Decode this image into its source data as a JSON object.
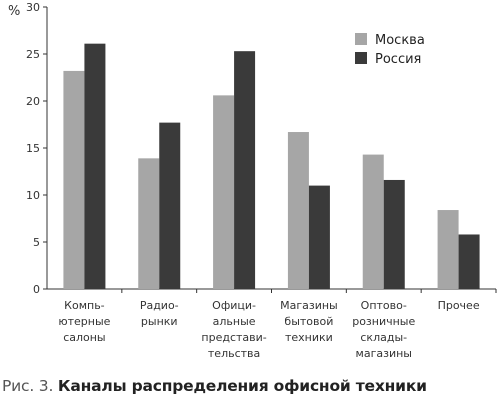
{
  "chart_data": {
    "type": "bar",
    "ylabel": "%",
    "ylim": [
      0,
      30
    ],
    "yticks": [
      0,
      5,
      10,
      15,
      20,
      25,
      30
    ],
    "categories": [
      [
        "Компь-",
        "ютерные",
        "салоны"
      ],
      [
        "Радио-",
        "рынки"
      ],
      [
        "Офици-",
        "альные",
        "представи-",
        "тельства"
      ],
      [
        "Магазины",
        "бытовой",
        "техники"
      ],
      [
        "Оптово-",
        "розничные",
        "склады-",
        "магазины"
      ],
      [
        "Прочее"
      ]
    ],
    "series": [
      {
        "name": "Москва",
        "color": "#a6a6a6",
        "values": [
          23.2,
          13.9,
          20.6,
          16.7,
          14.3,
          8.4
        ]
      },
      {
        "name": "Россия",
        "color": "#3a3a3a",
        "values": [
          26.1,
          17.7,
          25.3,
          11.0,
          11.6,
          5.8
        ]
      }
    ],
    "legend_position": "top-right",
    "grid": false
  },
  "caption": {
    "prefix": "Рис. 3. ",
    "title": "Каналы распределения офисной техники"
  }
}
